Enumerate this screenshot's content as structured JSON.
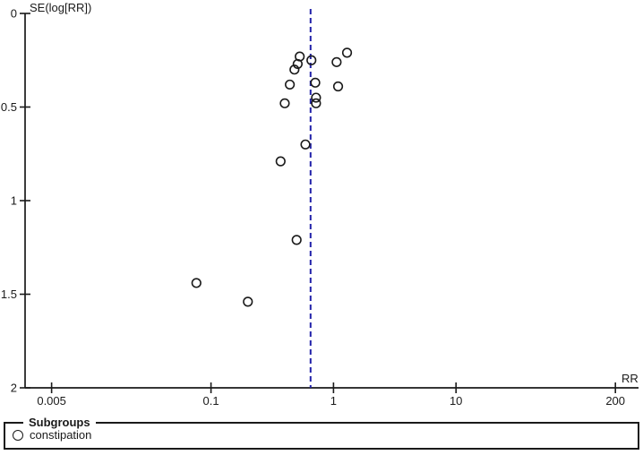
{
  "figure": {
    "kind": "funnel-plot",
    "background": "#ffffff",
    "axis_color": "#1a1a1a",
    "marker_color": "#1a1a1a"
  },
  "chart_data": {
    "type": "scatter",
    "title": "",
    "xlabel": "RR",
    "ylabel": "SE(log[RR])",
    "x_scale": "log",
    "y_inverted": true,
    "xlim": [
      0.003,
      300
    ],
    "ylim": [
      0,
      2
    ],
    "x_ticks": [
      0.005,
      0.1,
      1,
      10,
      200
    ],
    "x_tick_labels": [
      "0.005",
      "0.1",
      "1",
      "10",
      "200"
    ],
    "y_ticks": [
      0,
      0.5,
      1,
      1.5,
      2
    ],
    "y_tick_labels": [
      "0",
      "0.5",
      "1",
      "1.5",
      "2"
    ],
    "grid": false,
    "legend_position": "bottom",
    "vline": {
      "rr": 0.65,
      "style": "dashed",
      "color": "#2222aa"
    },
    "series": [
      {
        "name": "constipation",
        "marker": "open-circle",
        "points": [
          {
            "rr": 0.53,
            "se": 0.23
          },
          {
            "rr": 0.66,
            "se": 0.25
          },
          {
            "rr": 0.51,
            "se": 0.27
          },
          {
            "rr": 0.48,
            "se": 0.3
          },
          {
            "rr": 0.44,
            "se": 0.38
          },
          {
            "rr": 0.71,
            "se": 0.37
          },
          {
            "rr": 1.09,
            "se": 0.39
          },
          {
            "rr": 1.06,
            "se": 0.26
          },
          {
            "rr": 1.29,
            "se": 0.21
          },
          {
            "rr": 0.4,
            "se": 0.48
          },
          {
            "rr": 0.72,
            "se": 0.45
          },
          {
            "rr": 0.72,
            "se": 0.48
          },
          {
            "rr": 0.59,
            "se": 0.7
          },
          {
            "rr": 0.37,
            "se": 0.79
          },
          {
            "rr": 0.5,
            "se": 1.21
          },
          {
            "rr": 0.076,
            "se": 1.44
          },
          {
            "rr": 0.2,
            "se": 1.54
          }
        ]
      }
    ]
  },
  "legend": {
    "title": "Subgroups",
    "items": [
      {
        "label": "constipation",
        "marker": "open-circle"
      }
    ]
  }
}
